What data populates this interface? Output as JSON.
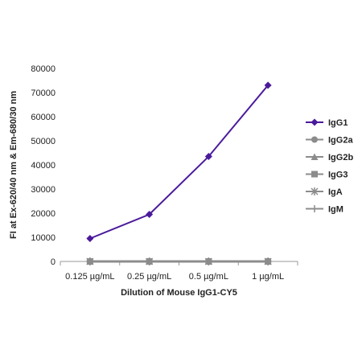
{
  "chart_data": {
    "type": "line",
    "title": "",
    "xlabel": "Dilution of Mouse IgG1-CY5",
    "ylabel": "FI at Ex-620/40 nm & Em-680/30 nm",
    "categories": [
      "0.125 µg/mL",
      "0.25 µg/mL",
      "0.5 µg/mL",
      "1 µg/mL"
    ],
    "ylim": [
      0,
      80000
    ],
    "yticks": [
      0,
      10000,
      20000,
      30000,
      40000,
      50000,
      60000,
      70000,
      80000
    ],
    "grid": false,
    "legend_position": "right",
    "series": [
      {
        "name": "IgG1",
        "values": [
          9500,
          19500,
          43500,
          73000
        ],
        "color": "#4b1a9b",
        "marker": "diamond"
      },
      {
        "name": "IgG2a",
        "values": [
          0,
          0,
          0,
          0
        ],
        "color": "#8c8c8c",
        "marker": "circle"
      },
      {
        "name": "IgG2b",
        "values": [
          0,
          0,
          0,
          0
        ],
        "color": "#8c8c8c",
        "marker": "triangle"
      },
      {
        "name": "IgG3",
        "values": [
          0,
          0,
          0,
          0
        ],
        "color": "#8c8c8c",
        "marker": "square"
      },
      {
        "name": "IgA",
        "values": [
          0,
          0,
          0,
          0
        ],
        "color": "#8c8c8c",
        "marker": "star"
      },
      {
        "name": "IgM",
        "values": [
          0,
          0,
          0,
          0
        ],
        "color": "#8c8c8c",
        "marker": "plus"
      }
    ]
  }
}
